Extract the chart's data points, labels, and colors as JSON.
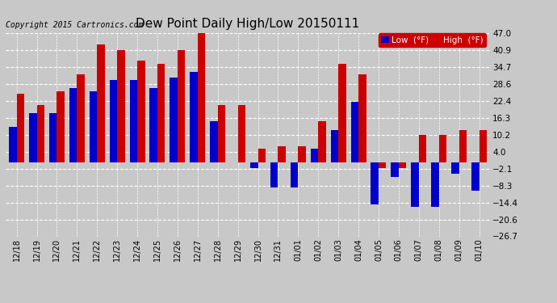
{
  "title": "Dew Point Daily High/Low 20150111",
  "copyright": "Copyright 2015 Cartronics.com",
  "labels": [
    "12/18",
    "12/19",
    "12/20",
    "12/21",
    "12/22",
    "12/23",
    "12/24",
    "12/25",
    "12/26",
    "12/27",
    "12/28",
    "12/29",
    "12/30",
    "12/31",
    "01/01",
    "01/02",
    "01/03",
    "01/04",
    "01/05",
    "01/06",
    "01/07",
    "01/08",
    "01/09",
    "01/10"
  ],
  "high": [
    25,
    21,
    26,
    32,
    43,
    41,
    37,
    36,
    41,
    47,
    21,
    21,
    5,
    6,
    6,
    15,
    36,
    32,
    -2,
    -2,
    10,
    10,
    12,
    12
  ],
  "low": [
    13,
    18,
    18,
    27,
    26,
    30,
    30,
    27,
    31,
    33,
    15,
    0,
    -2,
    -9,
    -9,
    5,
    12,
    22,
    -15,
    -5,
    -16,
    -16,
    -4,
    -10
  ],
  "high_color": "#cc0000",
  "low_color": "#0000cc",
  "bg_color": "#c8c8c8",
  "plot_bg_color": "#c8c8c8",
  "grid_color": "#ffffff",
  "ylim": [
    -26.7,
    47.0
  ],
  "yticks": [
    -26.7,
    -20.6,
    -14.4,
    -8.3,
    -2.1,
    4.0,
    10.2,
    16.3,
    22.4,
    28.6,
    34.7,
    40.9,
    47.0
  ]
}
